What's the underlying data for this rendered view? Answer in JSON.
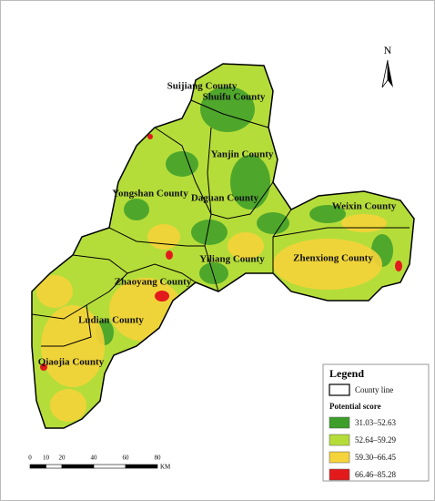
{
  "north_arrow": "N",
  "counties": [
    {
      "label": "Suijiang County"
    },
    {
      "label": "Shuifu County"
    },
    {
      "label": "Yanjin County"
    },
    {
      "label": "Yongshan County"
    },
    {
      "label": "Daguan County"
    },
    {
      "label": "Weixin County"
    },
    {
      "label": "Zhenxiong County"
    },
    {
      "label": "Yiliang County"
    },
    {
      "label": "Zhaoyang County"
    },
    {
      "label": "Ludian County"
    },
    {
      "label": "Qiaojia County"
    }
  ],
  "legend": {
    "title": "Legend",
    "county_line": "County line",
    "score_title": "Potential score",
    "classes": [
      {
        "label": "31.03–52.63",
        "color": "#3d9e2a"
      },
      {
        "label": "52.64–59.29",
        "color": "#b5dd3a"
      },
      {
        "label": "59.30–66.45",
        "color": "#f5d33a"
      },
      {
        "label": "66.46–85.28",
        "color": "#e31a1c"
      }
    ]
  },
  "scale_bar": {
    "ticks": [
      0,
      10,
      20,
      40,
      60,
      80
    ],
    "unit": "KM"
  }
}
